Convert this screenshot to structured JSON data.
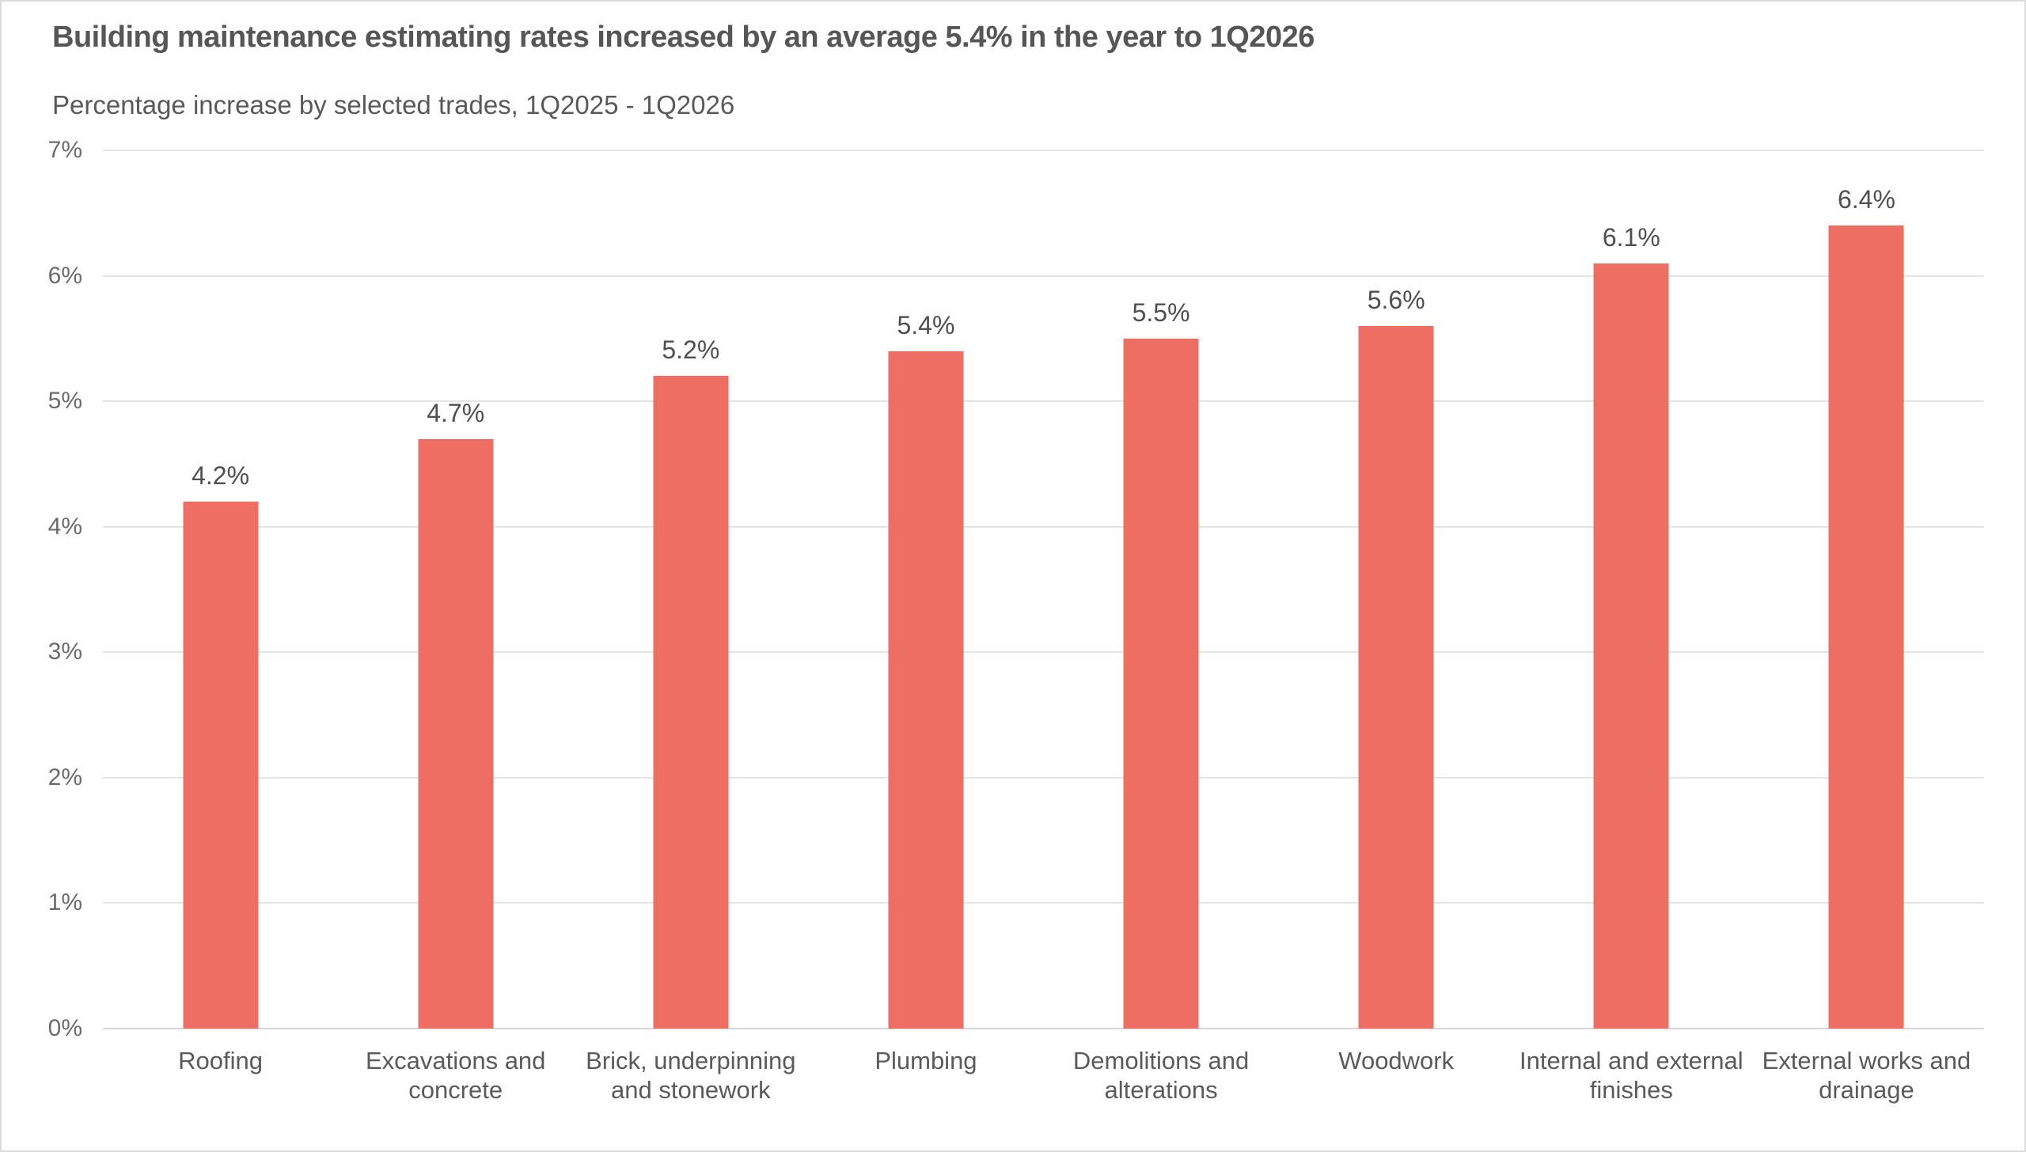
{
  "chart_data": {
    "type": "bar",
    "title": "Building maintenance estimating rates increased by an average 5.4% in the year to 1Q2026",
    "subtitle": "Percentage increase by selected trades, 1Q2025 - 1Q2026",
    "categories": [
      "Roofing",
      "Excavations and concrete",
      "Brick, underpinning and stonework",
      "Plumbing",
      "Demolitions and alterations",
      "Woodwork",
      "Internal and external finishes",
      "External works and drainage"
    ],
    "category_lines": [
      "Roofing",
      "Excavations and\nconcrete",
      "Brick, underpinning\nand stonework",
      "Plumbing",
      "Demolitions and\nalterations",
      "Woodwork",
      "Internal and external\nfinishes",
      "External works and\ndrainage"
    ],
    "values": [
      4.2,
      4.7,
      5.2,
      5.4,
      5.5,
      5.6,
      6.1,
      6.4
    ],
    "value_labels": [
      "4.2%",
      "4.7%",
      "5.2%",
      "5.4%",
      "5.5%",
      "5.6%",
      "6.1%",
      "6.4%"
    ],
    "xlabel": "",
    "ylabel": "",
    "ylim": [
      0,
      7
    ],
    "yticks": [
      "0%",
      "1%",
      "2%",
      "3%",
      "4%",
      "5%",
      "6%",
      "7%"
    ],
    "grid": "horizontal",
    "legend": "none",
    "bar_color": "#ef6e64",
    "gridline_color": "#e4e4e4",
    "baseline_color": "#d6d6d6",
    "title_color": "#565656",
    "label_color": "#5a5a5a"
  }
}
